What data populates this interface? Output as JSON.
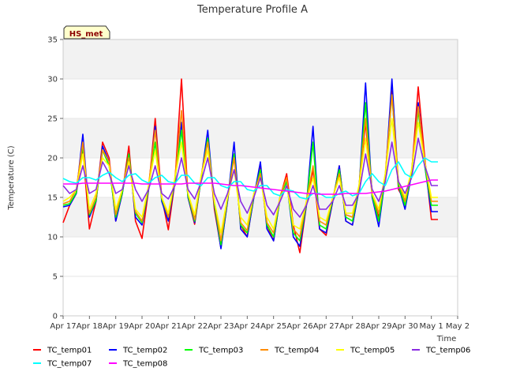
{
  "chart_data": {
    "type": "line",
    "title": "Temperature Profile A",
    "ylabel": "Temperature (C)",
    "xlabel": "Time",
    "badge": "HS_met",
    "ylim": [
      0,
      35
    ],
    "yticks": [
      0,
      5,
      10,
      15,
      20,
      25,
      30,
      35
    ],
    "xticks": [
      "Apr 17",
      "Apr 18",
      "Apr 19",
      "Apr 20",
      "Apr 21",
      "Apr 22",
      "Apr 23",
      "Apr 24",
      "Apr 25",
      "Apr 26",
      "Apr 27",
      "Apr 28",
      "Apr 29",
      "Apr 30",
      "May 1",
      "May 2"
    ],
    "bands": [
      [
        10,
        15
      ],
      [
        20,
        25
      ],
      [
        30,
        35
      ]
    ],
    "band_color": "#f2f2f2",
    "grid": true,
    "legend_position": "bottom",
    "x_days": [
      0,
      0.25,
      0.5,
      0.75,
      1,
      1.25,
      1.5,
      1.75,
      2,
      2.25,
      2.5,
      2.75,
      3,
      3.25,
      3.5,
      3.75,
      4,
      4.25,
      4.5,
      4.75,
      5,
      5.25,
      5.5,
      5.75,
      6,
      6.25,
      6.5,
      6.75,
      7,
      7.25,
      7.5,
      7.75,
      8,
      8.25,
      8.5,
      8.75,
      9,
      9.25,
      9.5,
      9.75,
      10,
      10.25,
      10.5,
      10.75,
      11,
      11.25,
      11.5,
      11.75,
      12,
      12.25,
      12.5,
      12.75,
      13,
      13.25,
      13.5,
      13.75,
      14,
      14.25
    ],
    "series": [
      {
        "name": "TC_temp01",
        "color": "#ff0000",
        "values": [
          11.8,
          14.0,
          15.5,
          21.0,
          11.0,
          14.5,
          22.0,
          20.0,
          12.0,
          15.5,
          21.5,
          12.0,
          9.8,
          16.0,
          25.0,
          15.0,
          10.9,
          17.0,
          30.0,
          15.0,
          11.6,
          17.5,
          22.5,
          13.5,
          8.6,
          14.5,
          20.5,
          11.5,
          10.0,
          15.0,
          19.0,
          11.5,
          9.5,
          15.0,
          18.0,
          11.5,
          8.0,
          14.0,
          18.5,
          11.0,
          10.2,
          14.5,
          19.0,
          12.0,
          11.5,
          16.0,
          24.5,
          15.0,
          12.5,
          17.5,
          28.5,
          16.0,
          14.5,
          18.0,
          29.0,
          20.0,
          12.2,
          12.2
        ]
      },
      {
        "name": "TC_temp02",
        "color": "#0000ff",
        "values": [
          13.8,
          14.0,
          15.5,
          23.0,
          12.5,
          14.5,
          21.5,
          19.5,
          12.0,
          15.5,
          20.5,
          12.5,
          11.5,
          16.0,
          24.0,
          14.5,
          12.0,
          17.0,
          24.5,
          15.0,
          11.8,
          17.5,
          23.5,
          14.0,
          8.5,
          14.5,
          22.0,
          11.0,
          10.0,
          15.0,
          19.5,
          11.0,
          9.5,
          15.0,
          17.0,
          10.0,
          8.8,
          14.0,
          24.0,
          11.0,
          10.5,
          14.5,
          19.0,
          12.0,
          11.5,
          16.0,
          29.5,
          15.0,
          11.3,
          17.5,
          30.0,
          16.5,
          13.5,
          18.0,
          27.0,
          19.0,
          13.2,
          13.2
        ]
      },
      {
        "name": "TC_temp03",
        "color": "#00ff00",
        "values": [
          14.0,
          14.2,
          15.6,
          21.5,
          12.8,
          14.6,
          21.0,
          19.0,
          12.5,
          15.6,
          20.5,
          13.0,
          11.8,
          16.2,
          22.0,
          14.8,
          12.5,
          17.2,
          23.5,
          15.2,
          12.0,
          17.5,
          22.5,
          14.2,
          9.0,
          14.8,
          20.5,
          11.5,
          10.5,
          15.2,
          18.5,
          11.5,
          10.0,
          15.0,
          17.0,
          10.5,
          9.5,
          14.2,
          22.0,
          11.5,
          11.0,
          14.8,
          18.5,
          12.5,
          12.0,
          16.2,
          27.0,
          15.2,
          12.0,
          17.6,
          28.0,
          16.5,
          14.0,
          18.2,
          26.0,
          19.0,
          14.0,
          14.0
        ]
      },
      {
        "name": "TC_temp04",
        "color": "#ff8c00",
        "values": [
          14.2,
          14.5,
          16.0,
          22.0,
          13.0,
          15.0,
          21.0,
          19.5,
          12.8,
          16.0,
          20.0,
          13.2,
          12.0,
          16.5,
          23.5,
          15.0,
          12.5,
          17.5,
          26.0,
          15.5,
          12.2,
          17.8,
          22.0,
          14.5,
          9.5,
          15.0,
          20.0,
          11.8,
          10.8,
          15.5,
          18.0,
          11.8,
          10.5,
          15.2,
          17.5,
          11.0,
          10.0,
          14.5,
          19.0,
          12.0,
          11.5,
          15.0,
          18.0,
          12.8,
          12.5,
          16.5,
          25.0,
          15.5,
          13.0,
          18.0,
          28.0,
          17.0,
          14.5,
          18.5,
          26.5,
          19.5,
          14.5,
          14.5
        ]
      },
      {
        "name": "TC_temp05",
        "color": "#ffff00",
        "values": [
          14.5,
          15.0,
          16.0,
          20.5,
          13.5,
          15.5,
          20.0,
          19.0,
          13.5,
          16.0,
          19.5,
          13.5,
          12.5,
          16.5,
          21.0,
          15.0,
          13.0,
          17.5,
          22.0,
          15.5,
          12.8,
          17.8,
          21.0,
          14.5,
          10.5,
          15.0,
          18.5,
          12.5,
          11.5,
          15.5,
          17.5,
          12.5,
          11.0,
          15.0,
          16.5,
          11.5,
          11.0,
          14.5,
          17.5,
          12.5,
          12.0,
          15.0,
          17.5,
          13.0,
          13.0,
          16.5,
          22.5,
          15.5,
          13.5,
          18.0,
          25.0,
          17.0,
          15.0,
          18.5,
          24.5,
          19.5,
          15.0,
          15.0
        ]
      },
      {
        "name": "TC_temp06",
        "color": "#8a2be2",
        "values": [
          16.5,
          15.5,
          16.0,
          19.0,
          15.5,
          16.0,
          19.5,
          18.0,
          15.5,
          16.0,
          19.0,
          16.0,
          14.5,
          16.0,
          19.0,
          15.5,
          14.8,
          16.5,
          20.0,
          16.0,
          14.8,
          17.0,
          20.0,
          15.5,
          13.5,
          15.5,
          18.5,
          14.5,
          13.0,
          15.0,
          17.5,
          14.0,
          12.8,
          14.5,
          16.5,
          13.5,
          12.5,
          14.0,
          16.5,
          13.5,
          13.5,
          14.5,
          16.5,
          14.0,
          14.0,
          15.5,
          20.5,
          16.0,
          14.5,
          17.0,
          22.0,
          17.0,
          15.5,
          17.5,
          22.5,
          19.0,
          16.5,
          16.5
        ]
      },
      {
        "name": "TC_temp07",
        "color": "#00ffff",
        "values": [
          17.4,
          17.0,
          16.8,
          17.5,
          17.5,
          17.2,
          17.8,
          18.2,
          17.5,
          17.0,
          17.8,
          18.0,
          17.2,
          16.8,
          17.5,
          17.8,
          17.0,
          16.8,
          17.8,
          17.8,
          16.8,
          16.5,
          17.5,
          17.5,
          16.5,
          16.2,
          17.0,
          17.0,
          16.0,
          15.8,
          16.5,
          16.5,
          15.5,
          15.2,
          16.0,
          15.8,
          15.0,
          14.8,
          15.5,
          15.5,
          15.0,
          15.0,
          15.5,
          15.8,
          15.2,
          15.5,
          17.0,
          18.0,
          17.0,
          16.5,
          18.5,
          19.5,
          18.0,
          17.5,
          19.0,
          20.0,
          19.5,
          19.5
        ]
      },
      {
        "name": "TC_temp08",
        "color": "#ff00ff",
        "values": [
          16.7,
          16.7,
          16.7,
          16.8,
          16.8,
          16.8,
          16.8,
          16.8,
          16.8,
          16.8,
          16.8,
          16.8,
          16.7,
          16.7,
          16.7,
          16.7,
          16.7,
          16.7,
          16.7,
          16.8,
          16.8,
          16.8,
          16.8,
          16.8,
          16.7,
          16.6,
          16.5,
          16.5,
          16.4,
          16.3,
          16.2,
          16.1,
          16.0,
          15.9,
          15.8,
          15.7,
          15.6,
          15.5,
          15.5,
          15.4,
          15.4,
          15.4,
          15.4,
          15.5,
          15.5,
          15.5,
          15.5,
          15.6,
          15.7,
          15.8,
          16.0,
          16.2,
          16.4,
          16.6,
          16.8,
          17.0,
          17.2,
          17.2
        ]
      }
    ]
  }
}
